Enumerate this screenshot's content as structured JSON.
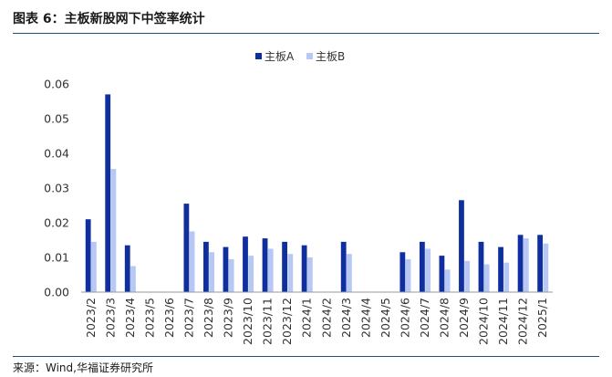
{
  "header": {
    "title": "图表 6：主板新股网下中签率统计"
  },
  "footer": {
    "source": "来源：Wind,华福证券研究所"
  },
  "colors": {
    "series_a": "#0f2f9e",
    "series_b": "#b7c8f5",
    "axis": "#9a9a9a",
    "rule": "#1f4e79"
  },
  "chart_data": {
    "type": "bar",
    "title": "",
    "xlabel": "",
    "ylabel": "",
    "ylim": [
      0,
      0.06
    ],
    "yticks": [
      "0.00",
      "0.01",
      "0.02",
      "0.03",
      "0.04",
      "0.05",
      "0.06"
    ],
    "grid": false,
    "legend": "top-center",
    "categories": [
      "2023/2",
      "2023/3",
      "2023/4",
      "2023/5",
      "2023/6",
      "2023/7",
      "2023/8",
      "2023/9",
      "2023/10",
      "2023/11",
      "2023/12",
      "2024/1",
      "2024/2",
      "2024/3",
      "2024/4",
      "2024/5",
      "2024/6",
      "2024/7",
      "2024/8",
      "2024/9",
      "2024/10",
      "2024/11",
      "2024/12",
      "2025/1"
    ],
    "series": [
      {
        "name": "主板A",
        "values": [
          0.021,
          0.057,
          0.0135,
          null,
          null,
          0.0255,
          0.0145,
          0.013,
          0.016,
          0.0155,
          0.0145,
          0.0135,
          null,
          0.0145,
          null,
          null,
          0.0115,
          0.0145,
          0.0105,
          0.0265,
          0.0145,
          0.013,
          0.0165,
          0.0165
        ]
      },
      {
        "name": "主板B",
        "values": [
          0.0145,
          0.0355,
          0.0075,
          null,
          null,
          0.0175,
          0.0115,
          0.0095,
          0.0105,
          0.0125,
          0.011,
          0.01,
          null,
          0.011,
          null,
          null,
          0.0095,
          0.0125,
          0.0065,
          0.009,
          0.008,
          0.0085,
          0.0155,
          0.014
        ]
      }
    ]
  }
}
